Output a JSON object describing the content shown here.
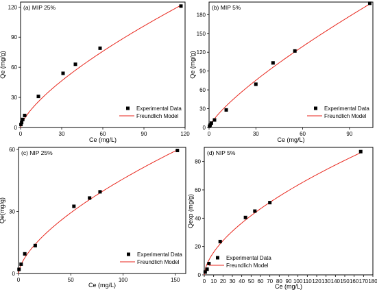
{
  "chart_data": [
    {
      "type": "scatter",
      "title": "(a) MIP 25%",
      "xlabel": "Ce (mg/L)",
      "ylabel": "Qe (mg/g)",
      "xlim": [
        0,
        120
      ],
      "ylim": [
        0,
        125
      ],
      "xticks": [
        0,
        30,
        60,
        90,
        120
      ],
      "yticks": [
        0,
        30,
        60,
        90,
        120
      ],
      "legend_position": "bottom-right",
      "series": [
        {
          "name": "Experimental Data",
          "kind": "points",
          "color": "#000000",
          "x": [
            0.3,
            0.8,
            1.6,
            3.0,
            13,
            31,
            40,
            58,
            117
          ],
          "y": [
            3,
            5,
            8,
            12,
            31,
            54,
            63,
            79,
            121
          ]
        },
        {
          "name": "Freundlich Model",
          "kind": "fit",
          "color": "#e8261c",
          "k": 4.2,
          "n": 0.707
        }
      ]
    },
    {
      "type": "scatter",
      "title": "(b) MIP 5%",
      "xlabel": "Ce (mg/L)",
      "ylabel": "Qe (mg/g)",
      "xlim": [
        0,
        105
      ],
      "ylim": [
        0,
        200
      ],
      "xticks": [
        0,
        30,
        60,
        90
      ],
      "yticks": [
        0,
        30,
        60,
        90,
        120,
        150,
        180
      ],
      "legend_position": "bottom-right",
      "series": [
        {
          "name": "Experimental Data",
          "kind": "points",
          "color": "#000000",
          "x": [
            0.3,
            0.7,
            1.5,
            3.5,
            11,
            30,
            41,
            55,
            103
          ],
          "y": [
            2,
            4,
            7,
            12,
            28,
            69,
            103,
            122,
            198
          ]
        },
        {
          "name": "Freundlich Model",
          "kind": "fit",
          "color": "#e8261c",
          "k": 5.3,
          "n": 0.78
        }
      ]
    },
    {
      "type": "scatter",
      "title": "(c) NIP 25%",
      "xlabel": "Ce (mg/L)",
      "ylabel": "Qe(mg/g)",
      "xlim": [
        0,
        160
      ],
      "ylim": [
        0,
        61
      ],
      "xticks": [
        0,
        50,
        100,
        150
      ],
      "yticks": [
        0,
        30,
        60
      ],
      "legend_position": "bottom-right",
      "series": [
        {
          "name": "Experimental Data",
          "kind": "points",
          "color": "#000000",
          "x": [
            0.5,
            2.5,
            6,
            16,
            53,
            68,
            78,
            152
          ],
          "y": [
            2,
            4.5,
            9.5,
            13.5,
            32.5,
            36.5,
            39.5,
            59.5
          ]
        },
        {
          "name": "Freundlich Model",
          "kind": "fit",
          "color": "#e8261c",
          "k": 2.4,
          "n": 0.64
        }
      ]
    },
    {
      "type": "scatter",
      "title": "(d) NIP 5%",
      "xlabel": "Ce (mg/L)",
      "ylabel": "Qexp (mg/g)",
      "xlim": [
        0,
        180
      ],
      "ylim": [
        0,
        90
      ],
      "xticks": [
        0,
        10,
        20,
        30,
        40,
        50,
        60,
        70,
        80,
        90,
        100,
        110,
        120,
        130,
        140,
        150,
        160,
        170,
        180
      ],
      "yticks": [
        0,
        20,
        40,
        60,
        80
      ],
      "legend_position": "bottom-left",
      "series": [
        {
          "name": "Experimental Data",
          "kind": "points",
          "color": "#000000",
          "x": [
            1,
            3,
            5,
            17,
            44,
            54,
            70,
            167
          ],
          "y": [
            2,
            4,
            8,
            23.5,
            40.5,
            45,
            51,
            87
          ]
        },
        {
          "name": "Freundlich Model",
          "kind": "fit",
          "color": "#e8261c",
          "k": 4.0,
          "n": 0.6
        }
      ]
    }
  ]
}
